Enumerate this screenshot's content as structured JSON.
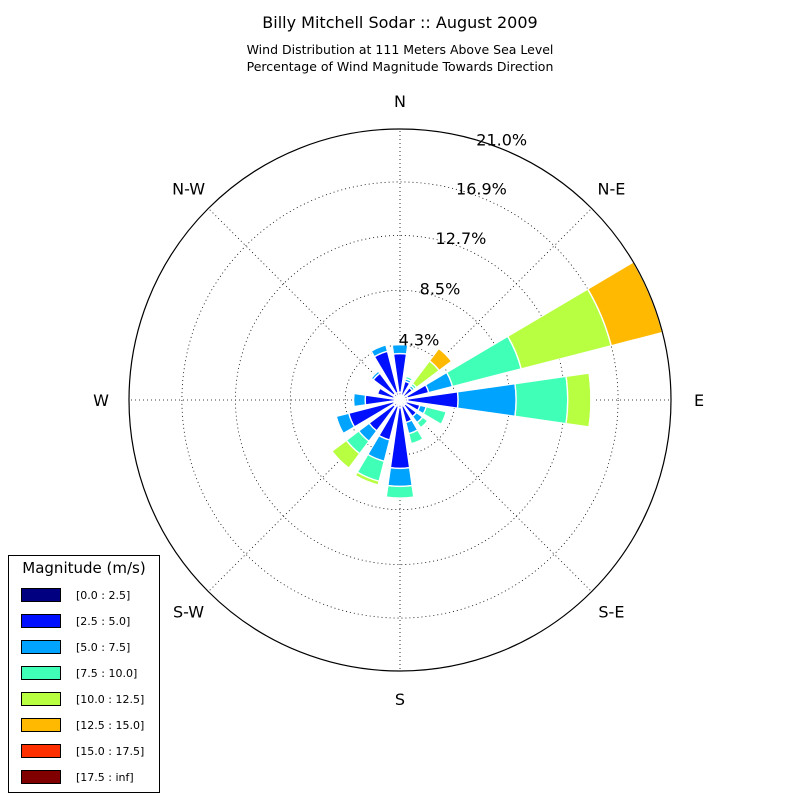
{
  "title": "Billy Mitchell Sodar :: August 2009",
  "subtitle_line1": "Wind Distribution at 111 Meters Above Sea Level",
  "subtitle_line2": "Percentage of Wind Magnitude Towards Direction",
  "chart_data": {
    "type": "windrose",
    "direction_labels": [
      "N",
      "N-E",
      "E",
      "S-E",
      "S",
      "S-W",
      "W",
      "N-W"
    ],
    "radial_ticks": [
      "4.3%",
      "8.5%",
      "12.7%",
      "16.9%",
      "21.0%"
    ],
    "radial_tick_values": [
      4.25,
      8.5,
      12.75,
      16.9,
      21.0
    ],
    "r_max": 21.0,
    "legend_title": "Magnitude (m/s)",
    "bins": [
      {
        "label": "[0.0 : 2.5]",
        "color": "#000080"
      },
      {
        "label": "[2.5 : 5.0]",
        "color": "#0010ff"
      },
      {
        "label": "[5.0 : 7.5]",
        "color": "#00a4ff"
      },
      {
        "label": "[7.5 : 10.0]",
        "color": "#40ffb7"
      },
      {
        "label": "[10.0 : 12.5]",
        "color": "#b7ff40"
      },
      {
        "label": "[12.5 : 15.0]",
        "color": "#ffb900"
      },
      {
        "label": "[15.0 : 17.5]",
        "color": "#ff3000"
      },
      {
        "label": "[17.5 : inf]",
        "color": "#800000"
      }
    ],
    "sector_width_deg": 22.5,
    "sectors": [
      {
        "direction_deg": 0,
        "cumulative": [
          0.6,
          3.6,
          4.3,
          4.4
        ]
      },
      {
        "direction_deg": 22.5,
        "cumulative": [
          0.4,
          1.5,
          1.7,
          1.9,
          2.0
        ]
      },
      {
        "direction_deg": 45,
        "cumulative": [
          0.4,
          1.2,
          1.4,
          1.6,
          3.8,
          5.0
        ]
      },
      {
        "direction_deg": 67.5,
        "cumulative": [
          0.6,
          2.3,
          4.2,
          9.7,
          16.9,
          21.0
        ]
      },
      {
        "direction_deg": 90,
        "cumulative": [
          0.6,
          4.5,
          9.0,
          13.0,
          14.8,
          14.9
        ]
      },
      {
        "direction_deg": 112.5,
        "cumulative": [
          0.5,
          1.6,
          2.1,
          3.7,
          3.8
        ]
      },
      {
        "direction_deg": 135,
        "cumulative": [
          0.5,
          1.6,
          2.2,
          2.7,
          2.8
        ]
      },
      {
        "direction_deg": 157.5,
        "cumulative": [
          0.5,
          1.8,
          2.7,
          3.5
        ]
      },
      {
        "direction_deg": 180,
        "cumulative": [
          0.6,
          5.3,
          6.7,
          7.6
        ]
      },
      {
        "direction_deg": 202.5,
        "cumulative": [
          0.5,
          3.2,
          4.9,
          6.5,
          6.8
        ]
      },
      {
        "direction_deg": 225,
        "cumulative": [
          0.6,
          3.0,
          4.0,
          5.2,
          6.6
        ]
      },
      {
        "direction_deg": 247.5,
        "cumulative": [
          0.5,
          4.1,
          5.1
        ]
      },
      {
        "direction_deg": 270,
        "cumulative": [
          0.4,
          2.7,
          3.6
        ]
      },
      {
        "direction_deg": 292.5,
        "cumulative": [
          0.5,
          1.8
        ]
      },
      {
        "direction_deg": 315,
        "cumulative": [
          0.6,
          2.6,
          2.8
        ]
      },
      {
        "direction_deg": 337.5,
        "cumulative": [
          0.6,
          3.9,
          4.4
        ]
      }
    ]
  }
}
